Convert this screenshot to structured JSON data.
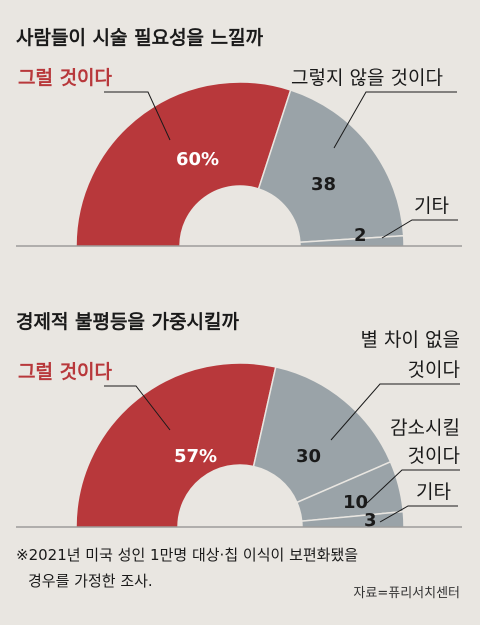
{
  "colors": {
    "agree": "#b8383b",
    "other": "#9aa3a8",
    "background": "#e9e6e1",
    "leader": "#1a1a1a"
  },
  "chart_data": [
    {
      "type": "pie",
      "title": "사람들이 시술 필요성을 느낄까",
      "slices": [
        {
          "label": "그럴 것이다",
          "value": 60,
          "value_text": "60%"
        },
        {
          "label": "그렇지 않을 것이다",
          "value": 38,
          "value_text": "38"
        },
        {
          "label": "기타",
          "value": 2,
          "value_text": "2"
        }
      ]
    },
    {
      "type": "pie",
      "title": "경제적 불평등을 가중시킬까",
      "slices": [
        {
          "label": "그럴 것이다",
          "value": 57,
          "value_text": "57%"
        },
        {
          "label": "별 차이 없을 것이다",
          "label_lines": [
            "별 차이 없을",
            "것이다"
          ],
          "value": 30,
          "value_text": "30"
        },
        {
          "label": "감소시킬 것이다",
          "label_lines": [
            "감소시킬",
            "것이다"
          ],
          "value": 10,
          "value_text": "10"
        },
        {
          "label": "기타",
          "value": 3,
          "value_text": "3"
        }
      ]
    }
  ],
  "footnote_lines": [
    "※2021년 미국 성인 1만명 대상·칩 이식이 보편화됐을",
    "경우를 가정한 조사."
  ],
  "source": "자료=퓨리서치센터"
}
